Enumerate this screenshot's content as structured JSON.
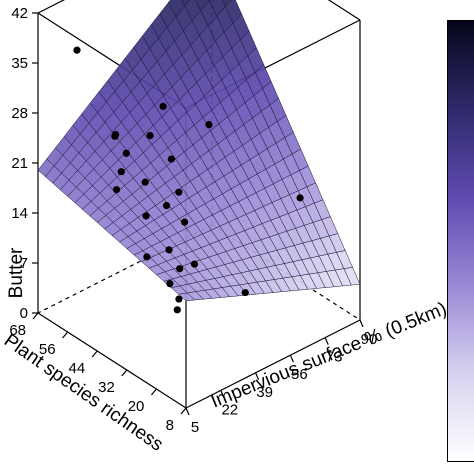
{
  "chart_data": {
    "type": "surface3d",
    "title": "",
    "xlabel": "Impervious surface % (0.5km)",
    "ylabel": "Plant species richness",
    "zlabel": "Butter",
    "x_ticks": [
      "5",
      "22",
      "39",
      "56",
      "73",
      "90"
    ],
    "y_ticks": [
      "8",
      "20",
      "32",
      "44",
      "56",
      "68"
    ],
    "z_ticks": [
      "0",
      "7",
      "14",
      "21",
      "28",
      "35",
      "42"
    ],
    "xlim": [
      5,
      90
    ],
    "ylim": [
      8,
      68
    ],
    "zlim": [
      0,
      42
    ],
    "surface": {
      "corners": [
        {
          "x": 5,
          "y": 8,
          "z": 15
        },
        {
          "x": 90,
          "y": 8,
          "z": 5
        },
        {
          "x": 5,
          "y": 68,
          "z": 20
        },
        {
          "x": 90,
          "y": 68,
          "z": 39
        }
      ]
    },
    "points": [
      {
        "x": 12,
        "y": 58,
        "z": 38
      },
      {
        "x": 14,
        "y": 44,
        "z": 29
      },
      {
        "x": 10,
        "y": 41,
        "z": 30
      },
      {
        "x": 18,
        "y": 45,
        "z": 23
      },
      {
        "x": 12,
        "y": 38,
        "z": 28
      },
      {
        "x": 26,
        "y": 40,
        "z": 28
      },
      {
        "x": 42,
        "y": 48,
        "z": 28
      },
      {
        "x": 34,
        "y": 38,
        "z": 24
      },
      {
        "x": 28,
        "y": 30,
        "z": 22
      },
      {
        "x": 14,
        "y": 32,
        "z": 25
      },
      {
        "x": 6,
        "y": 37,
        "z": 24
      },
      {
        "x": 22,
        "y": 30,
        "z": 21
      },
      {
        "x": 12,
        "y": 30,
        "z": 21
      },
      {
        "x": 26,
        "y": 26,
        "z": 19
      },
      {
        "x": 62,
        "y": 46,
        "z": 23
      },
      {
        "x": 16,
        "y": 24,
        "z": 17
      },
      {
        "x": 26,
        "y": 22,
        "z": 14
      },
      {
        "x": 20,
        "y": 23,
        "z": 14
      },
      {
        "x": 10,
        "y": 28,
        "z": 16
      },
      {
        "x": 14,
        "y": 22,
        "z": 13
      },
      {
        "x": 16,
        "y": 20,
        "z": 11
      },
      {
        "x": 46,
        "y": 18,
        "z": 8
      },
      {
        "x": 14,
        "y": 19,
        "z": 10
      },
      {
        "x": 80,
        "y": 24,
        "z": 15
      }
    ],
    "colorbar": {
      "colors": [
        "#06061a",
        "#2e2a6a",
        "#5f4ab0",
        "#9a88d6",
        "#d7d2ef",
        "#ffffff"
      ]
    }
  }
}
